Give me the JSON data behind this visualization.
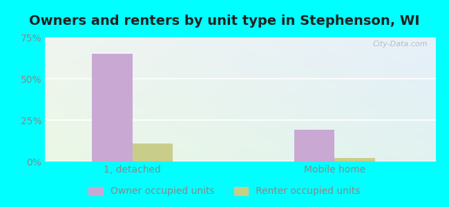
{
  "title": "Owners and renters by unit type in Stephenson, WI",
  "categories": [
    "1, detached",
    "Mobile home"
  ],
  "owner_values": [
    65.0,
    19.0
  ],
  "renter_values": [
    11.0,
    2.0
  ],
  "owner_color": "#c9a8d4",
  "renter_color": "#c8cd8a",
  "ylim": [
    0,
    75
  ],
  "yticks": [
    0,
    25,
    50,
    75
  ],
  "ytick_labels": [
    "0%",
    "25%",
    "50%",
    "75%"
  ],
  "legend_owner": "Owner occupied units",
  "legend_renter": "Renter occupied units",
  "bg_outer": "#00ffff",
  "watermark": "City-Data.com",
  "bar_width": 0.3,
  "group_positions": [
    0.75,
    2.25
  ],
  "title_fontsize": 14,
  "tick_fontsize": 10,
  "legend_fontsize": 10,
  "xlim": [
    0.1,
    3.0
  ]
}
